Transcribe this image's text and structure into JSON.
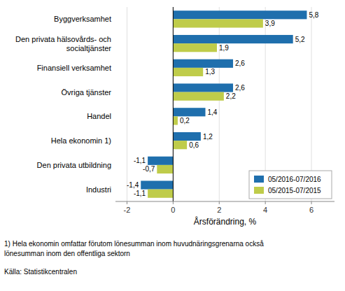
{
  "chart_data": {
    "type": "bar",
    "orientation": "horizontal",
    "categories": [
      "Industri",
      "Den privata utbildning",
      "Hela ekonomin 1)",
      "Handel",
      "Övriga tjänster",
      "Finansiell verksamhet",
      "Den privata hälsovårds- och\nsocialtjänster",
      "Byggverksamhet"
    ],
    "series": [
      {
        "name": "05/2016-07/2016",
        "color": "#1F6FAD",
        "values": [
          -1.4,
          -1.1,
          1.2,
          1.4,
          2.6,
          2.6,
          5.2,
          5.8
        ],
        "value_labels": [
          "-1,4",
          "-1,1",
          "1,2",
          "1,4",
          "2,6",
          "2,6",
          "5,2",
          "5,8"
        ]
      },
      {
        "name": "05/2015-07/2015",
        "color": "#BFCC4A",
        "values": [
          -1.1,
          -0.7,
          0.6,
          0.2,
          2.2,
          1.3,
          1.9,
          3.9
        ],
        "value_labels": [
          "-1,1",
          "-0,7",
          "0,6",
          "0,2",
          "2,2",
          "1,3",
          "1,9",
          "3,9"
        ]
      }
    ],
    "xlabel": "Årsförändring, %",
    "xlim": [
      -2.5,
      7.0
    ],
    "xticks": [
      -2,
      0,
      2,
      4,
      6
    ],
    "grid": true,
    "legend": "lower-right",
    "data_labels": true,
    "annotations": [
      "1) Hela ekonomin omfattar förutom lönesumman inom huvudnäringsgrenarna också",
      "lönesumman inom den offentliga sektorn",
      "Källa: Statistikcentralen"
    ]
  }
}
